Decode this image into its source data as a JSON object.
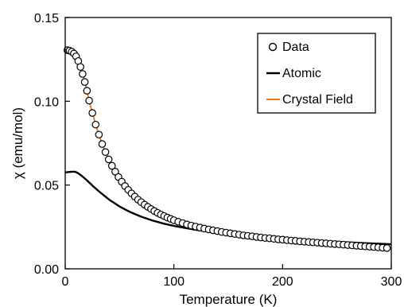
{
  "chart_data": {
    "type": "scatter",
    "title": "",
    "xlabel": "Temperature (K)",
    "ylabel": "χ (emu/mol)",
    "xlim": [
      0,
      300
    ],
    "ylim": [
      0,
      0.15
    ],
    "x_ticks": [
      "0",
      "100",
      "200",
      "300"
    ],
    "y_ticks": [
      "0.00",
      "0.05",
      "0.10",
      "0.15"
    ],
    "grid": false,
    "legend_position": "top-right",
    "legend": [
      "Data",
      "Atomic",
      "Crystal Field"
    ],
    "colors": {
      "data": "#000000",
      "atomic": "#000000",
      "crystal_field": "#e87722"
    },
    "series": [
      {
        "name": "Data",
        "style": "open-circle-markers",
        "x": [
          2,
          4,
          6,
          8,
          10,
          12,
          14,
          16,
          18,
          20,
          22,
          25,
          28,
          31,
          34,
          37,
          40,
          43,
          46,
          49,
          52,
          55,
          58,
          61,
          64,
          67,
          70,
          73,
          76,
          79,
          82,
          85,
          88,
          91,
          94,
          97,
          100,
          104,
          108,
          112,
          116,
          120,
          124,
          128,
          132,
          136,
          140,
          144,
          148,
          152,
          156,
          160,
          164,
          168,
          172,
          176,
          180,
          184,
          188,
          192,
          196,
          200,
          204,
          208,
          212,
          216,
          220,
          224,
          228,
          232,
          236,
          240,
          244,
          248,
          252,
          256,
          260,
          264,
          268,
          272,
          276,
          280,
          284,
          288,
          292,
          296
        ],
        "y": [
          0.1305,
          0.1302,
          0.1296,
          0.1285,
          0.1268,
          0.124,
          0.1205,
          0.1163,
          0.1115,
          0.1063,
          0.1004,
          0.093,
          0.0861,
          0.0801,
          0.0745,
          0.0697,
          0.0653,
          0.0615,
          0.058,
          0.0548,
          0.052,
          0.0494,
          0.0471,
          0.045,
          0.0431,
          0.0413,
          0.0398,
          0.0383,
          0.037,
          0.0357,
          0.0345,
          0.0334,
          0.0324,
          0.0315,
          0.0306,
          0.0298,
          0.029,
          0.0281,
          0.0273,
          0.0265,
          0.0258,
          0.0252,
          0.0246,
          0.024,
          0.0235,
          0.023,
          0.0225,
          0.022,
          0.0216,
          0.0212,
          0.0208,
          0.0204,
          0.02,
          0.0197,
          0.0194,
          0.019,
          0.0187,
          0.0184,
          0.0182,
          0.0179,
          0.0176,
          0.0174,
          0.0171,
          0.0169,
          0.0167,
          0.0164,
          0.0162,
          0.016,
          0.0158,
          0.0156,
          0.0154,
          0.0152,
          0.015,
          0.0148,
          0.0146,
          0.0144,
          0.0142,
          0.014,
          0.0138,
          0.0136,
          0.0134,
          0.0132,
          0.013,
          0.0128,
          0.0126,
          0.0124
        ]
      },
      {
        "name": "Atomic",
        "style": "line",
        "x": [
          0,
          4,
          8,
          10,
          12,
          15,
          20,
          25,
          30,
          40,
          50,
          60,
          70,
          80,
          90,
          100,
          120,
          140,
          160,
          180,
          200,
          220,
          240,
          260,
          280,
          300
        ],
        "y": [
          0.0575,
          0.0578,
          0.058,
          0.0577,
          0.057,
          0.0556,
          0.0528,
          0.0497,
          0.0468,
          0.0415,
          0.0372,
          0.0338,
          0.0311,
          0.0289,
          0.0271,
          0.0256,
          0.0233,
          0.0215,
          0.0201,
          0.0189,
          0.0179,
          0.0171,
          0.0164,
          0.0158,
          0.0152,
          0.0147
        ]
      },
      {
        "name": "Crystal Field",
        "style": "line",
        "x": [
          2,
          4,
          6,
          8,
          10,
          12,
          14,
          16,
          18,
          20,
          22,
          25,
          28,
          31,
          34,
          37,
          40,
          45,
          50,
          55,
          60,
          70,
          80,
          90,
          100,
          120,
          140,
          160,
          180,
          200,
          220,
          240,
          260,
          280,
          300
        ],
        "y": [
          0.1305,
          0.1302,
          0.1296,
          0.1285,
          0.1268,
          0.124,
          0.1205,
          0.1163,
          0.1115,
          0.1063,
          0.1004,
          0.093,
          0.0861,
          0.0801,
          0.0745,
          0.0697,
          0.0653,
          0.059,
          0.0535,
          0.0489,
          0.0455,
          0.0398,
          0.0351,
          0.0318,
          0.0292,
          0.0254,
          0.0227,
          0.0206,
          0.019,
          0.0176,
          0.0164,
          0.0153,
          0.0143,
          0.0133,
          0.0123
        ]
      }
    ]
  }
}
